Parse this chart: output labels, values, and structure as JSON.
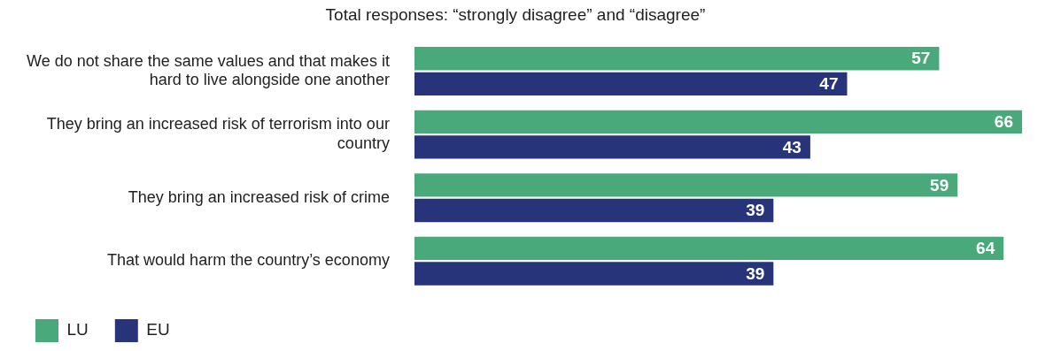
{
  "chart_data": {
    "type": "bar",
    "orientation": "horizontal",
    "title": "Total responses: “strongly disagree” and “disagree”",
    "categories": [
      "We do not share the same values and that makes it hard to live alongside one another",
      "They bring an increased risk of terrorism into our country",
      "They bring an increased risk of crime",
      "That would harm the country’s economy"
    ],
    "series": [
      {
        "name": "LU",
        "color": "#4aa97a",
        "values": [
          57,
          66,
          59,
          64
        ]
      },
      {
        "name": "EU",
        "color": "#27347a",
        "values": [
          47,
          43,
          39,
          39
        ]
      }
    ],
    "data_labels": true,
    "legend": "bottom left"
  }
}
